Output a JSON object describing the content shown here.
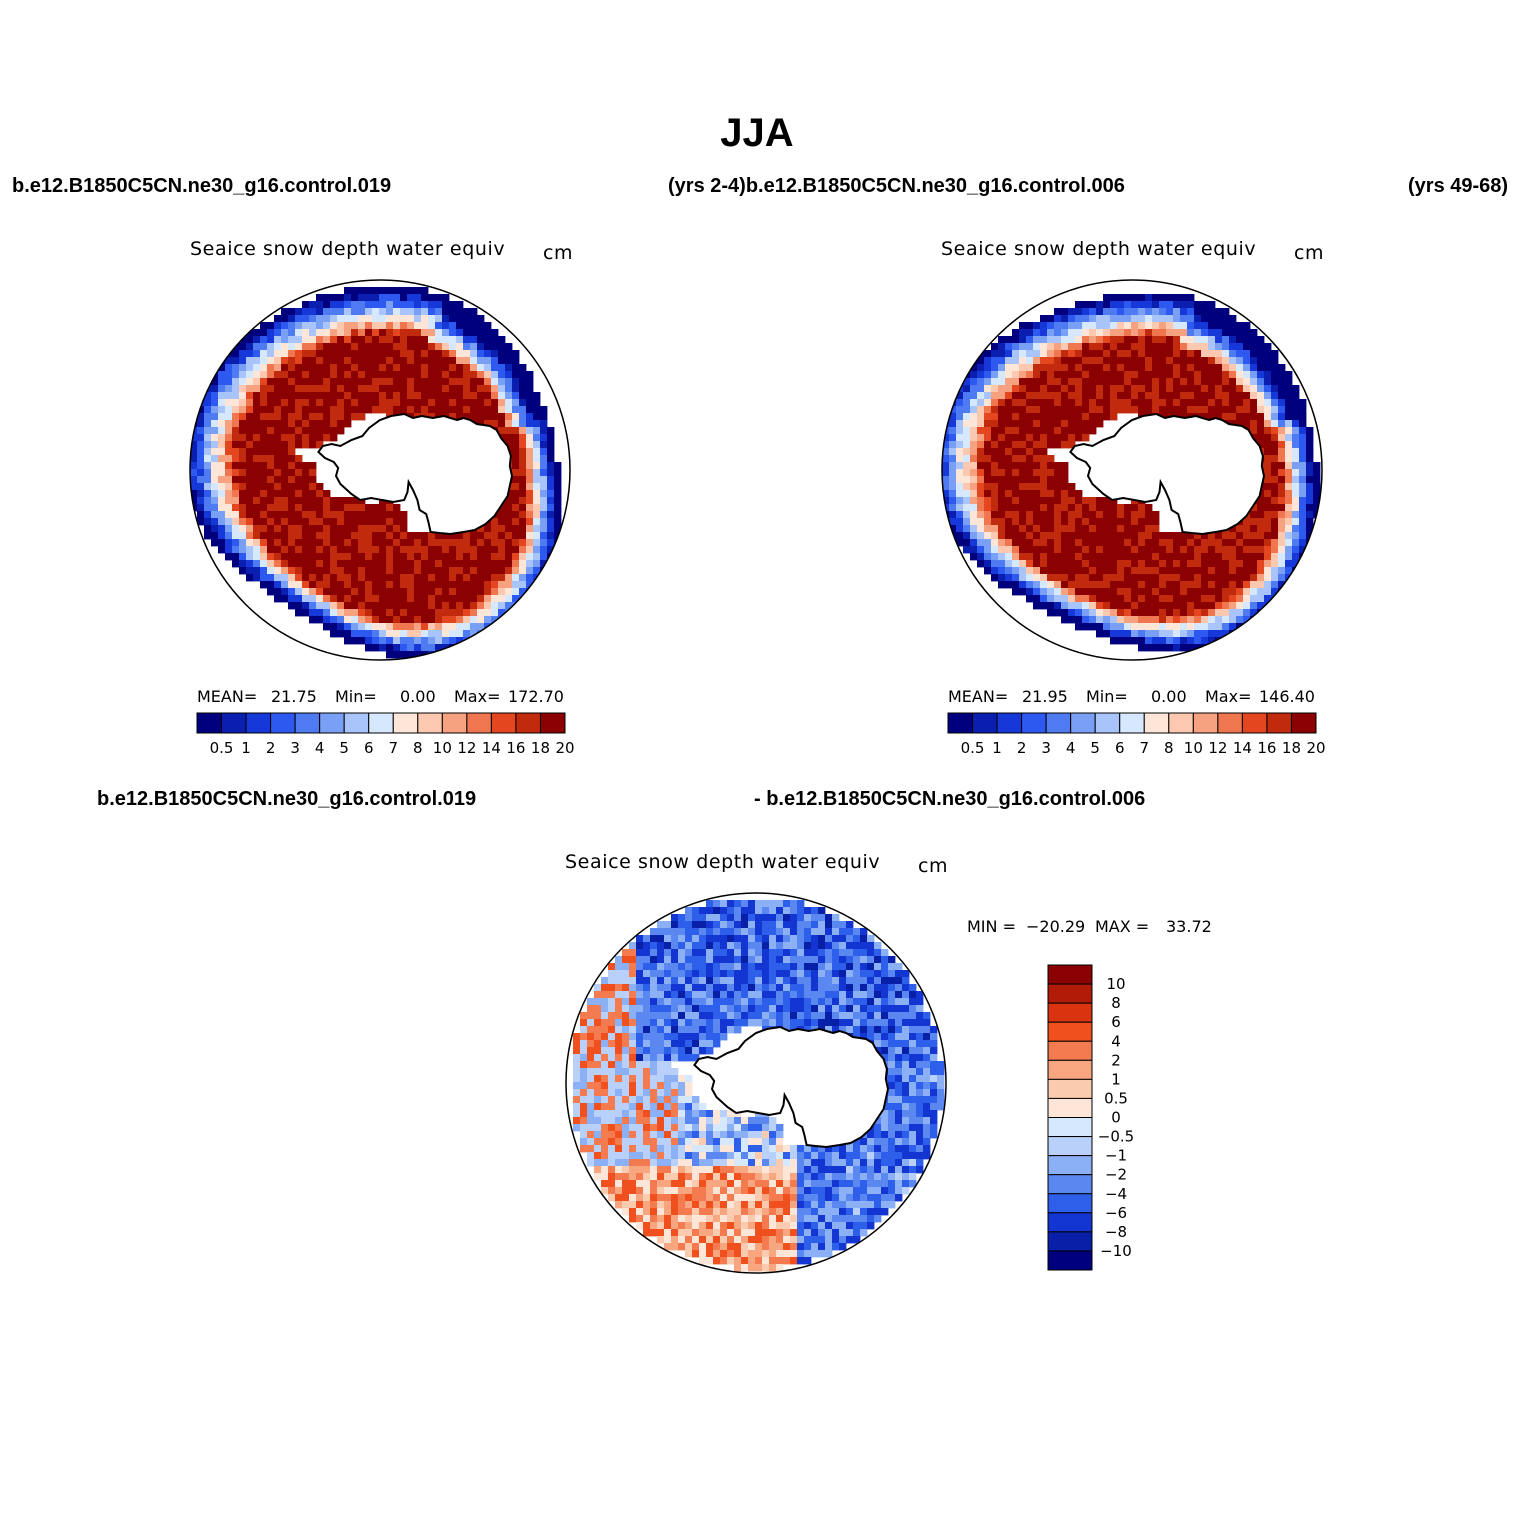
{
  "figure": {
    "title": "JJA",
    "case_top_left": "b.e12.B1850C5CN.ne30_g16.control.019",
    "case_top_middle": "(yrs 2-4)b.e12.B1850C5CN.ne30_g16.control.006",
    "case_top_right": "(yrs 49-68)",
    "case_diff_left": "b.e12.B1850C5CN.ne30_g16.control.019",
    "case_diff_right": "- b.e12.B1850C5CN.ne30_g16.control.006"
  },
  "chart_data": [
    {
      "type": "heatmap",
      "projection": "south-polar-stereographic",
      "title": "Seaice snow depth water equiv",
      "units": "cm",
      "stats": {
        "mean_label": "MEAN=",
        "mean": "21.75",
        "min_label": "Min=",
        "min": "0.00",
        "max_label": "Max=",
        "max": "172.70"
      },
      "colorbar_levels": [
        "0.5",
        "1",
        "2",
        "3",
        "4",
        "5",
        "6",
        "7",
        "8",
        "10",
        "12",
        "14",
        "16",
        "18",
        "20"
      ],
      "colorbar_colors": [
        "#00007f",
        "#0a1fb0",
        "#1638d8",
        "#2e59f0",
        "#4f7bf2",
        "#7aa0f6",
        "#a9c4fa",
        "#d6e8fd",
        "#fde6d8",
        "#fcc8b0",
        "#f6a180",
        "#f07650",
        "#e4471f",
        "#c22a0e",
        "#8b0000"
      ]
    },
    {
      "type": "heatmap",
      "projection": "south-polar-stereographic",
      "title": "Seaice snow depth water equiv",
      "units": "cm",
      "stats": {
        "mean_label": "MEAN=",
        "mean": "21.95",
        "min_label": "Min=",
        "min": "0.00",
        "max_label": "Max=",
        "max": "146.40"
      },
      "colorbar_levels": [
        "0.5",
        "1",
        "2",
        "3",
        "4",
        "5",
        "6",
        "7",
        "8",
        "10",
        "12",
        "14",
        "16",
        "18",
        "20"
      ],
      "colorbar_colors": [
        "#00007f",
        "#0a1fb0",
        "#1638d8",
        "#2e59f0",
        "#4f7bf2",
        "#7aa0f6",
        "#a9c4fa",
        "#d6e8fd",
        "#fde6d8",
        "#fcc8b0",
        "#f6a180",
        "#f07650",
        "#e4471f",
        "#c22a0e",
        "#8b0000"
      ]
    },
    {
      "type": "heatmap",
      "projection": "south-polar-stereographic",
      "title": "Seaice snow depth water equiv",
      "units": "cm",
      "stats": {
        "min_label": "MIN =",
        "min": "−20.29",
        "max_label": "MAX =",
        "max": "33.72"
      },
      "colorbar_levels": [
        "10",
        "8",
        "6",
        "4",
        "2",
        "1",
        "0.5",
        "0",
        "−0.5",
        "−1",
        "−2",
        "−4",
        "−6",
        "−8",
        "−10"
      ],
      "colorbar_colors": [
        "#8b0000",
        "#b01c08",
        "#d9330f",
        "#f0501e",
        "#f47a4f",
        "#f8a67f",
        "#fbcbb0",
        "#fde6d8",
        "#d6e8fd",
        "#b9d1fa",
        "#8cb0f5",
        "#5a88f0",
        "#2e5fea",
        "#1335d2",
        "#0820a8",
        "#00007f"
      ]
    }
  ]
}
